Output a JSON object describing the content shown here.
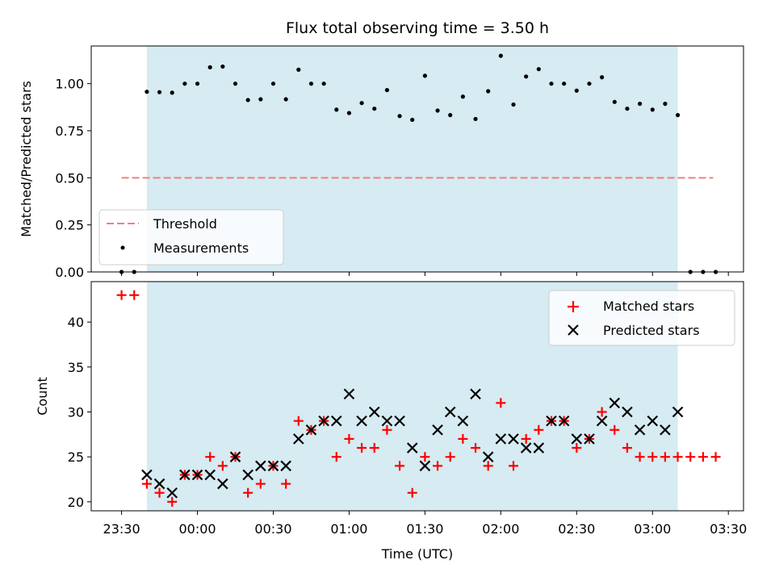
{
  "chart_data": {
    "title": "Flux total observing time = 3.50 h",
    "xlabel": "Time (UTC)",
    "x_ticks": [
      "23:30",
      "00:00",
      "00:30",
      "01:00",
      "01:30",
      "02:00",
      "02:30",
      "03:00",
      "03:30"
    ],
    "x_tick_minutes": [
      -30,
      0,
      30,
      60,
      90,
      120,
      150,
      180,
      210
    ],
    "x_range_minutes": [
      -42,
      216
    ],
    "observing_window_minutes": [
      -20,
      190
    ],
    "window_color": "#add8e6",
    "top": {
      "type": "scatter",
      "ylabel": "Matched/Predicted stars",
      "ylim": [
        0,
        1.2
      ],
      "y_ticks": [
        "0.00",
        "0.25",
        "0.50",
        "0.75",
        "1.00"
      ],
      "y_tick_values": [
        0,
        0.25,
        0.5,
        0.75,
        1.0
      ],
      "threshold": {
        "label": "Threshold",
        "value": 0.5,
        "x_range": [
          -30,
          204
        ],
        "color": "#f08080"
      },
      "measurements_label": "Measurements",
      "measurements": {
        "x": [
          -30,
          -25,
          -20,
          -15,
          -10,
          -5,
          0,
          5,
          10,
          15,
          20,
          25,
          30,
          35,
          40,
          45,
          50,
          55,
          60,
          65,
          70,
          75,
          80,
          85,
          90,
          95,
          100,
          105,
          110,
          115,
          120,
          125,
          130,
          135,
          140,
          145,
          150,
          155,
          160,
          165,
          170,
          175,
          180,
          185,
          190,
          195,
          200,
          205
        ],
        "y": [
          0,
          0,
          0.957,
          0.955,
          0.952,
          1.0,
          1.0,
          1.087,
          1.091,
          1.0,
          0.913,
          0.917,
          1.0,
          0.917,
          1.074,
          1.0,
          1.0,
          0.862,
          0.844,
          0.897,
          0.867,
          0.966,
          0.828,
          0.808,
          1.042,
          0.857,
          0.833,
          0.931,
          0.8125,
          0.96,
          1.148,
          0.889,
          1.038,
          1.077,
          1.0,
          1.0,
          0.963,
          1.0,
          1.034,
          0.903,
          0.867,
          0.893,
          0.862,
          0.893,
          0.833,
          0,
          0,
          0
        ]
      },
      "legend_position": "lower-left"
    },
    "bottom": {
      "type": "scatter",
      "ylabel": "Count",
      "ylim": [
        19,
        44.5
      ],
      "y_ticks": [
        "20",
        "25",
        "30",
        "35",
        "40"
      ],
      "y_tick_values": [
        20,
        25,
        30,
        35,
        40
      ],
      "legend_position": "upper-right",
      "series": [
        {
          "name": "Matched stars",
          "marker": "plus",
          "color": "#ff0000",
          "x": [
            -30,
            -25,
            -20,
            -15,
            -10,
            -5,
            0,
            5,
            10,
            15,
            20,
            25,
            30,
            35,
            40,
            45,
            50,
            55,
            60,
            65,
            70,
            75,
            80,
            85,
            90,
            95,
            100,
            105,
            110,
            115,
            120,
            125,
            130,
            135,
            140,
            145,
            150,
            155,
            160,
            165,
            170,
            175,
            180,
            185,
            190,
            195,
            200,
            205
          ],
          "y": [
            43,
            43,
            22,
            21,
            20,
            23,
            23,
            25,
            24,
            25,
            21,
            22,
            24,
            22,
            29,
            28,
            29,
            25,
            27,
            26,
            26,
            28,
            24,
            21,
            25,
            24,
            25,
            27,
            26,
            24,
            31,
            24,
            27,
            28,
            29,
            29,
            26,
            27,
            30,
            28,
            26,
            25,
            25,
            25,
            25,
            25,
            25,
            25
          ]
        },
        {
          "name": "Predicted stars",
          "marker": "x",
          "color": "#000000",
          "x": [
            -20,
            -15,
            -10,
            -5,
            0,
            5,
            10,
            15,
            20,
            25,
            30,
            35,
            40,
            45,
            50,
            55,
            60,
            65,
            70,
            75,
            80,
            85,
            90,
            95,
            100,
            105,
            110,
            115,
            120,
            125,
            130,
            135,
            140,
            145,
            150,
            155,
            160,
            165,
            170,
            175,
            180,
            185,
            190
          ],
          "y": [
            23,
            22,
            21,
            23,
            23,
            23,
            22,
            25,
            23,
            24,
            24,
            24,
            27,
            28,
            29,
            29,
            32,
            29,
            30,
            29,
            29,
            26,
            24,
            28,
            30,
            29,
            32,
            25,
            27,
            27,
            26,
            26,
            29,
            29,
            27,
            27,
            29,
            31,
            30,
            28,
            29,
            28,
            30
          ]
        }
      ]
    }
  }
}
